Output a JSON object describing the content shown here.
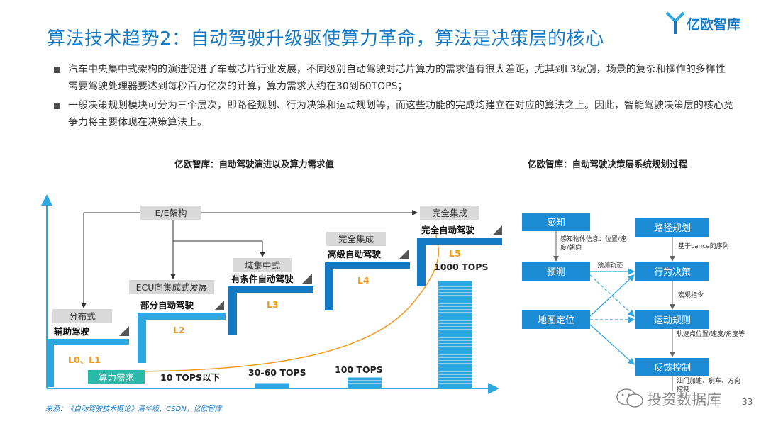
{
  "header": {
    "title": "算法技术趋势2：自动驾驶升级驱使算力革命，算法是决策层的核心",
    "logo_text": "亿欧智库",
    "colors": {
      "accent": "#1479c4",
      "light_blue": "#2ea7e0",
      "orange": "#f39a1e"
    }
  },
  "bullets": [
    "汽车中央集中式架构的演进促进了车载芯片行业发展，不同级别自动驾驶对芯片算力的需求值有很大差距，尤其到L3级别，场景的复杂和操作的多样性需要驾驶处理器要达到每秒百万亿次的计算，算力需求大约在30到60TOPS；",
    "一般决策规划模块可分为三个层次，即路径规划、行为决策和运动规划等，而这些功能的完成均建立在对应的算法之上。因此，智能驾驶决策层的核心竞争力将主要体现在决策算法上。"
  ],
  "left_chart": {
    "subtitle": "亿欧智库：自动驾驶演进以及算力需求值",
    "top_label": "E/E架构",
    "power_label": "算力需求",
    "stages": [
      {
        "arch": "分布式",
        "name": "辅助驾驶",
        "level": "L0、L1"
      },
      {
        "arch": "ECU向集成式发展",
        "name": "部分自动驾驶",
        "level": "L2"
      },
      {
        "arch": "域集中式",
        "name": "有条件自动驾驶",
        "level": "L3"
      },
      {
        "arch": "完全集成",
        "name": "高级自动驾驶",
        "level": "L4"
      },
      {
        "arch": "完全集成",
        "name": "完全自动驾驶",
        "level": "L5"
      }
    ],
    "tops_labels": [
      "10 TOPS以下",
      "30-60 TOPS",
      "100 TOPS",
      "1000 TOPS"
    ]
  },
  "right_chart": {
    "subtitle": "亿欧智库：自动驾驶决策层系统规划过程",
    "nodes": {
      "perception": "感知",
      "prediction": "预测",
      "localization": "地图定位",
      "path_planning": "路径规划",
      "behavior": "行为决策",
      "motion": "运动规则",
      "feedback": "反馈控制"
    },
    "edge_labels": {
      "perception_to_prediction": "感知物体信息：位置/速度/朝向",
      "prediction_to_behavior": "预测轨迹",
      "path_to_behavior": "基于Lance的序列",
      "behavior_to_motion": "宏观指令",
      "motion_to_feedback": "轨迹点位置/速度/角度等",
      "feedback_out": "油门加速、刹车、方向控制"
    }
  },
  "footer": {
    "source": "来源：《自动驾驶技术概论》清华版、CSDN，亿欧智库",
    "watermark": "投资数据库",
    "page_number": "33"
  }
}
